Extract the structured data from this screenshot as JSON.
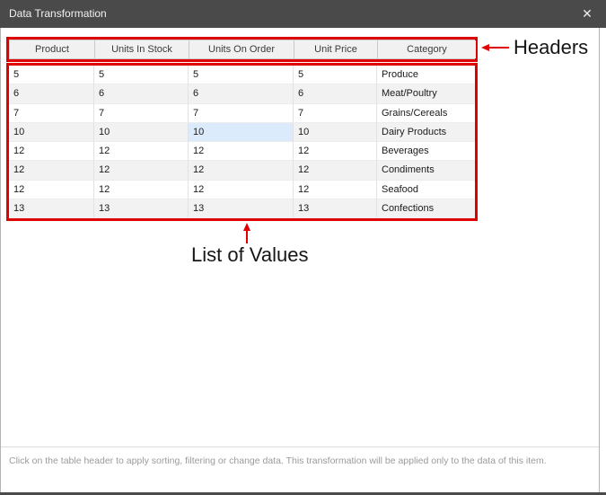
{
  "window": {
    "title": "Data Transformation",
    "close_glyph": "✕",
    "titlebar_color": "#4a4a4a"
  },
  "table": {
    "headers": [
      "Product",
      "Units In Stock",
      "Units On Order",
      "Unit Price",
      "Category"
    ],
    "rows": [
      [
        "5",
        "5",
        "5",
        "5",
        "Produce"
      ],
      [
        "6",
        "6",
        "6",
        "6",
        "Meat/Poultry"
      ],
      [
        "7",
        "7",
        "7",
        "7",
        "Grains/Cereals"
      ],
      [
        "10",
        "10",
        "10",
        "10",
        "Dairy Products"
      ],
      [
        "12",
        "12",
        "12",
        "12",
        "Beverages"
      ],
      [
        "12",
        "12",
        "12",
        "12",
        "Condiments"
      ],
      [
        "12",
        "12",
        "12",
        "12",
        "Seafood"
      ],
      [
        "13",
        "13",
        "13",
        "13",
        "Confections"
      ]
    ],
    "highlighted_cell": {
      "row_index": 3,
      "col_index": 2
    },
    "highlight_color": "#dcebfc"
  },
  "annotations": {
    "headers_label": "Headers",
    "values_label": "List of Values",
    "accent_color": "#e00000"
  },
  "footer": {
    "hint": "Click on the table header to apply sorting, filtering or change data. This transformation will be applied only to the data of this item."
  }
}
